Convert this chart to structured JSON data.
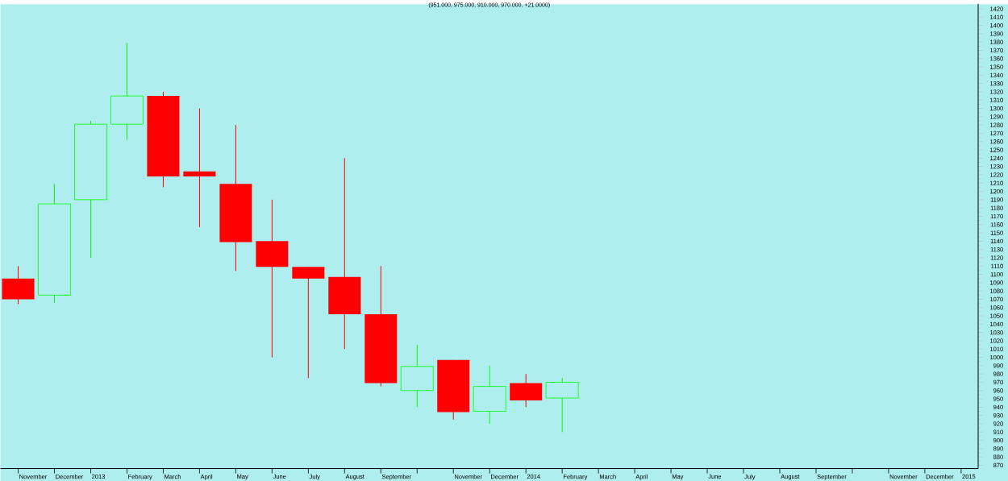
{
  "chart_data": {
    "type": "candlestick",
    "title": "(951.000, 975.000, 910.000, 970.000, +21.0000)",
    "categories": [
      "November",
      "December",
      "2013",
      "February",
      "March",
      "April",
      "May",
      "June",
      "July",
      "August",
      "September",
      null,
      "November",
      "December",
      "2014",
      "February",
      "March",
      "April",
      "May",
      "June",
      "July",
      "August",
      "September",
      null,
      "November",
      "December",
      "2015"
    ],
    "ohlc": [
      [
        1095,
        1110,
        1064,
        1070
      ],
      [
        1075,
        1209,
        1066,
        1185
      ],
      [
        1190,
        1285,
        1120,
        1281
      ],
      [
        1281,
        1379,
        1262,
        1315
      ],
      [
        1315,
        1320,
        1205,
        1218
      ],
      [
        1224,
        1300,
        1157,
        1218
      ],
      [
        1209,
        1280,
        1104,
        1139
      ],
      [
        1140,
        1190,
        1000,
        1109
      ],
      [
        1109,
        1109,
        975,
        1095
      ],
      [
        1097,
        1240,
        1010,
        1052
      ],
      [
        1052,
        1110,
        965,
        969
      ],
      [
        960,
        1015,
        940,
        989
      ],
      [
        997,
        997,
        925,
        934
      ],
      [
        935,
        990,
        920,
        965
      ],
      [
        969,
        980,
        940,
        948
      ],
      [
        951,
        975,
        910,
        970
      ],
      null,
      null,
      null,
      null,
      null,
      null,
      null,
      null,
      null,
      null,
      null
    ],
    "colors": [
      "#ff0000",
      "#00ff00",
      "#00ff00",
      "#00ff00",
      "#ff0000",
      "#ff0000",
      "#ff0000",
      "#ff0000",
      "#ff0000",
      "#ff0000",
      "#ff0000",
      "#00ff00",
      "#ff0000",
      "#00ff00",
      "#ff0000",
      "#00ff00",
      null,
      null,
      null,
      null,
      null,
      null,
      null,
      null,
      null,
      null,
      null
    ],
    "ylim": [
      866,
      1426
    ],
    "yticks": [
      870,
      880,
      890,
      900,
      910,
      920,
      930,
      940,
      950,
      960,
      970,
      980,
      990,
      1000,
      1010,
      1020,
      1030,
      1040,
      1050,
      1060,
      1070,
      1080,
      1090,
      1100,
      1110,
      1120,
      1130,
      1140,
      1150,
      1160,
      1170,
      1180,
      1190,
      1200,
      1210,
      1220,
      1230,
      1240,
      1250,
      1260,
      1270,
      1280,
      1290,
      1300,
      1310,
      1320,
      1330,
      1340,
      1350,
      1360,
      1370,
      1380,
      1390,
      1400,
      1410,
      1420
    ]
  }
}
